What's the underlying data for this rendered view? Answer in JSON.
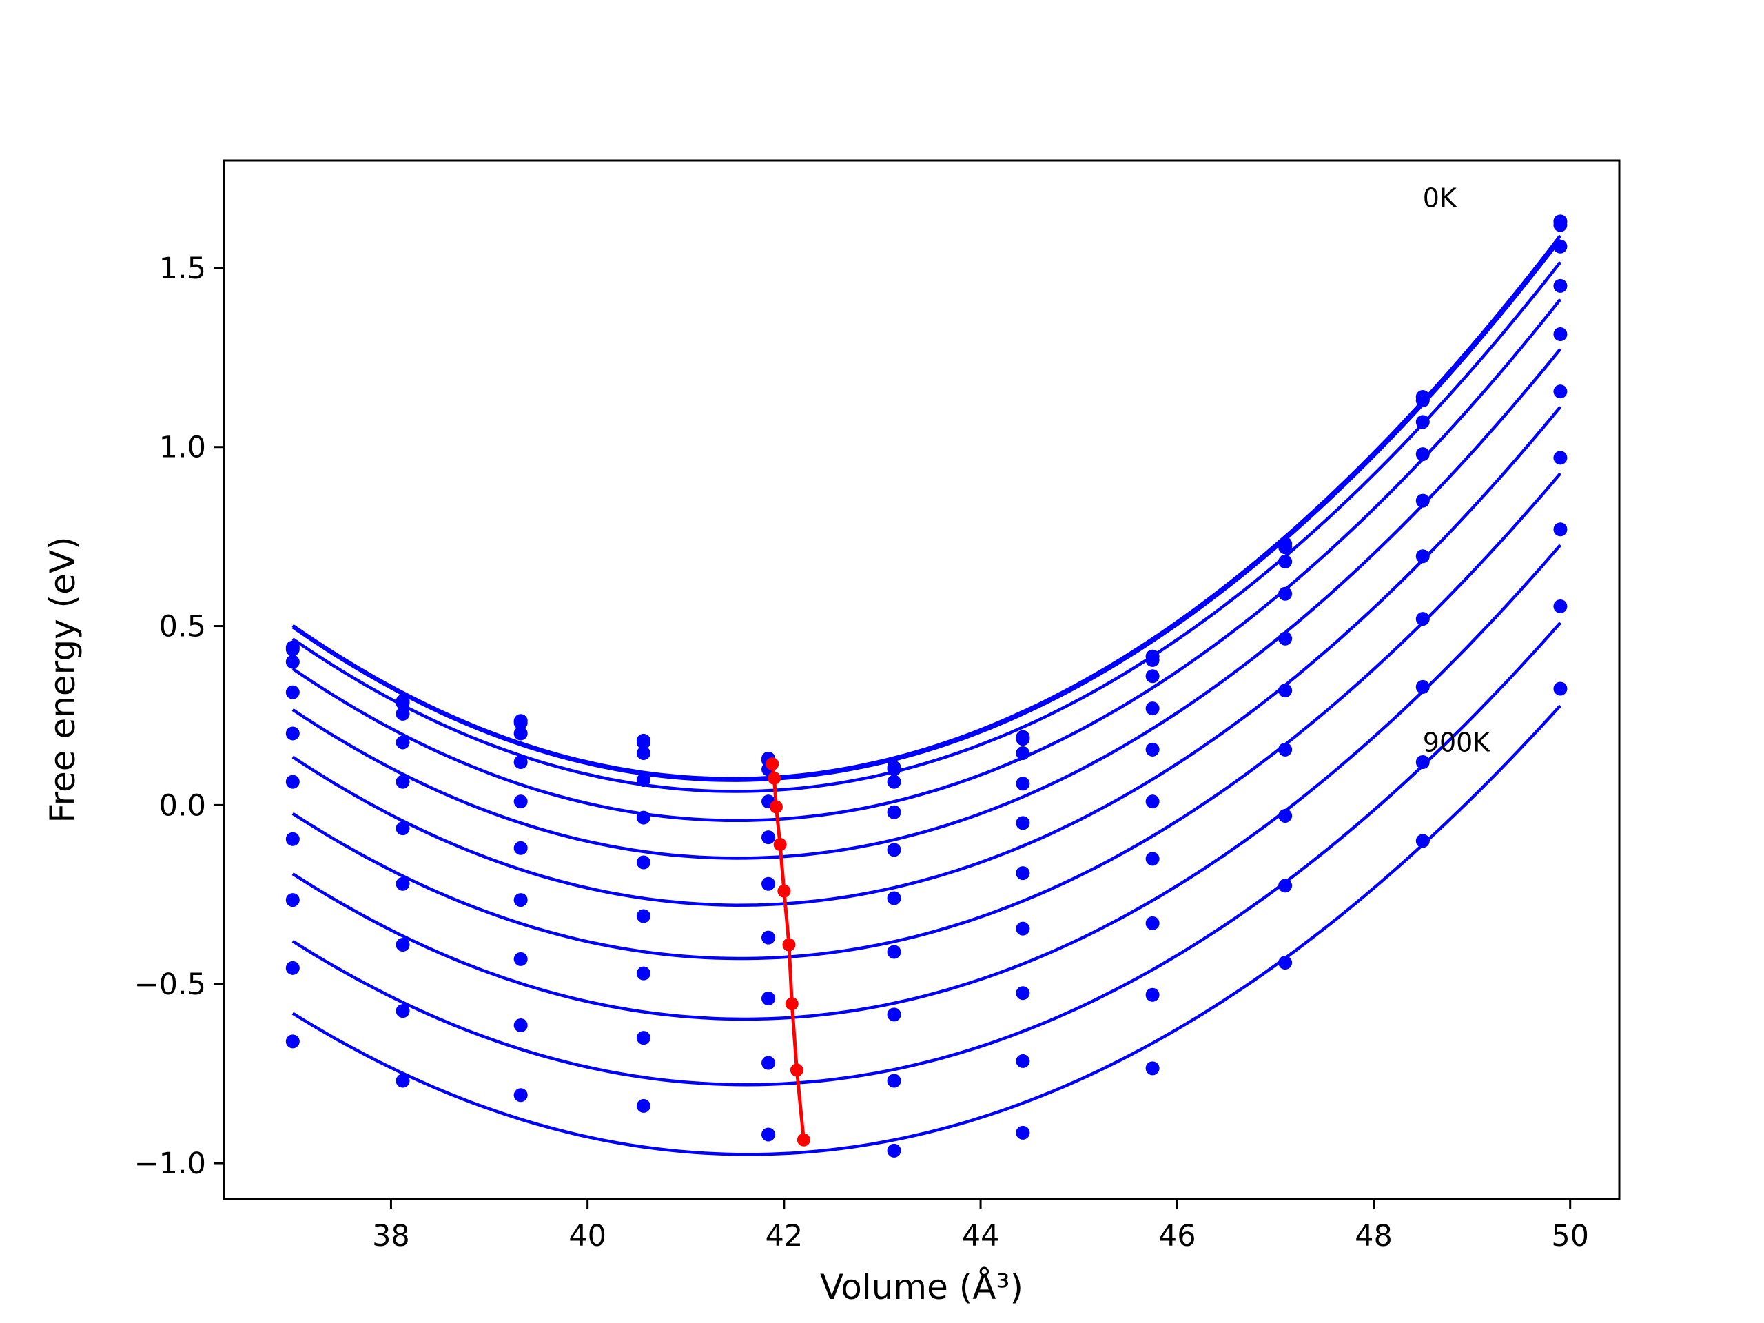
{
  "chart_data": {
    "type": "scatter",
    "title": "",
    "xlabel": "Volume (Å³)",
    "ylabel": "Free energy (eV)",
    "xlim": [
      36.3,
      50.5
    ],
    "ylim": [
      -1.1,
      1.8
    ],
    "xticks": [
      38,
      40,
      42,
      44,
      46,
      48,
      50
    ],
    "yticks": [
      -1.0,
      -0.5,
      0.0,
      0.5,
      1.0,
      1.5
    ],
    "xtick_labels": [
      "38",
      "40",
      "42",
      "44",
      "46",
      "48",
      "50"
    ],
    "ytick_labels": [
      "−1.0",
      "−0.5",
      "0.0",
      "0.5",
      "1.0",
      "1.5"
    ],
    "grid": false,
    "annotations": [
      {
        "text": "0K",
        "x": 48.5,
        "y": 1.67
      },
      {
        "text": "900K",
        "x": 48.5,
        "y": 0.15
      }
    ],
    "colors": {
      "data": "#0000ff",
      "minimum_path": "#ff0000"
    },
    "fit_x_range": [
      37.0,
      49.9
    ],
    "x": [
      37.0,
      38.12,
      39.32,
      40.57,
      41.84,
      43.12,
      44.43,
      45.75,
      47.1,
      48.5,
      49.9
    ],
    "series": [
      {
        "values": [
          0.44,
          0.29,
          0.235,
          0.18,
          0.13,
          0.105,
          0.19,
          0.415,
          0.73,
          1.14,
          1.63
        ]
      },
      {
        "values": [
          0.435,
          0.285,
          0.23,
          0.175,
          0.125,
          0.1,
          0.185,
          0.405,
          0.72,
          1.13,
          1.62
        ]
      },
      {
        "values": [
          0.4,
          0.255,
          0.2,
          0.145,
          0.1,
          0.065,
          0.145,
          0.36,
          0.68,
          1.07,
          1.56
        ]
      },
      {
        "values": [
          0.315,
          0.175,
          0.12,
          0.07,
          0.01,
          -0.02,
          0.06,
          0.27,
          0.59,
          0.98,
          1.45
        ]
      },
      {
        "values": [
          0.2,
          0.065,
          0.01,
          -0.035,
          -0.09,
          -0.125,
          -0.05,
          0.155,
          0.465,
          0.85,
          1.315
        ]
      },
      {
        "values": [
          0.065,
          -0.065,
          -0.12,
          -0.16,
          -0.22,
          -0.26,
          -0.19,
          0.01,
          0.32,
          0.695,
          1.155
        ]
      },
      {
        "values": [
          -0.095,
          -0.22,
          -0.265,
          -0.31,
          -0.37,
          -0.41,
          -0.345,
          -0.15,
          0.155,
          0.52,
          0.97
        ]
      },
      {
        "values": [
          -0.265,
          -0.39,
          -0.43,
          -0.47,
          -0.54,
          -0.585,
          -0.525,
          -0.33,
          -0.03,
          0.33,
          0.77
        ]
      },
      {
        "values": [
          -0.455,
          -0.575,
          -0.615,
          -0.65,
          -0.72,
          -0.77,
          -0.715,
          -0.53,
          -0.225,
          0.12,
          0.555
        ]
      },
      {
        "values": [
          -0.66,
          -0.77,
          -0.81,
          -0.84,
          -0.92,
          -0.965,
          -0.915,
          -0.735,
          -0.44,
          -0.1,
          0.325
        ]
      }
    ],
    "minimum_path": {
      "x": [
        41.88,
        41.9,
        41.92,
        41.96,
        42.0,
        42.05,
        42.08,
        42.13,
        42.2
      ],
      "y": [
        0.115,
        0.075,
        -0.005,
        -0.11,
        -0.24,
        -0.39,
        -0.555,
        -0.74,
        -0.935
      ]
    }
  }
}
